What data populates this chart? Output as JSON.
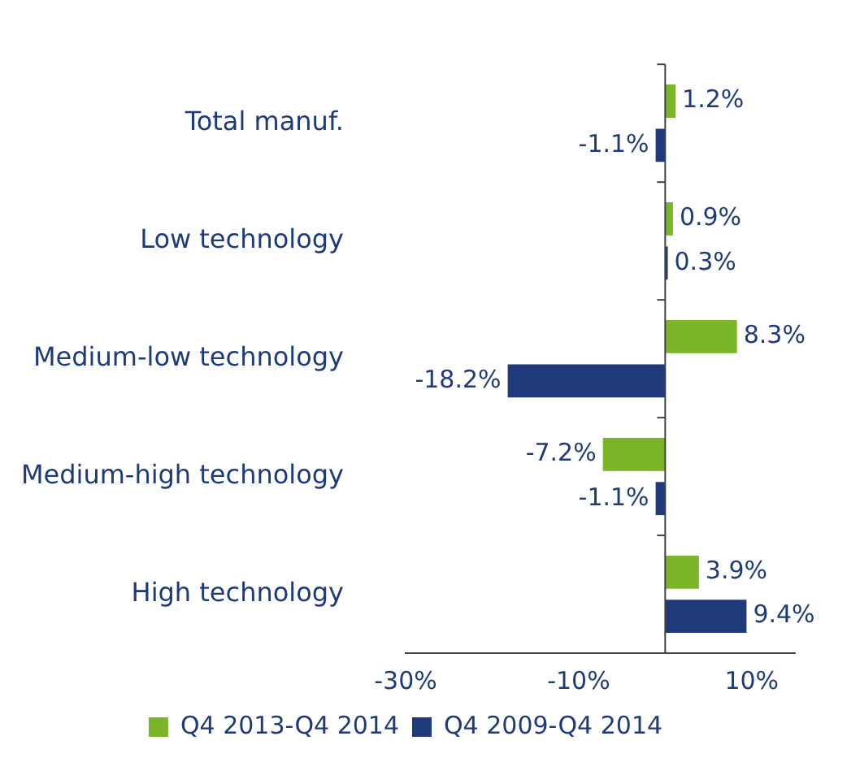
{
  "chart_data": {
    "type": "bar",
    "orientation": "horizontal",
    "categories": [
      "Total manuf.",
      "Low technology",
      "Medium-low technology",
      "Medium-high technology",
      "High technology"
    ],
    "series": [
      {
        "name": "Q4 2013-Q4 2014",
        "color": "#7ab52a",
        "values": [
          1.2,
          0.9,
          8.3,
          -7.2,
          3.9
        ],
        "value_labels": [
          "1.2%",
          "0.9%",
          "8.3%",
          "-7.2%",
          "3.9%"
        ]
      },
      {
        "name": "Q4 2009-Q4 2014",
        "color": "#1f3a7a",
        "values": [
          -1.1,
          0.3,
          -18.2,
          -1.1,
          9.4
        ],
        "value_labels": [
          "-1.1%",
          "0.3%",
          "-18.2%",
          "-1.1%",
          "9.4%"
        ]
      }
    ],
    "xlim": [
      -30,
      15
    ],
    "xticks": [
      {
        "value": -30,
        "label": "-30%"
      },
      {
        "value": -10,
        "label": "-10%"
      },
      {
        "value": 10,
        "label": "10%"
      }
    ],
    "grid": false,
    "legend": "bottom"
  }
}
